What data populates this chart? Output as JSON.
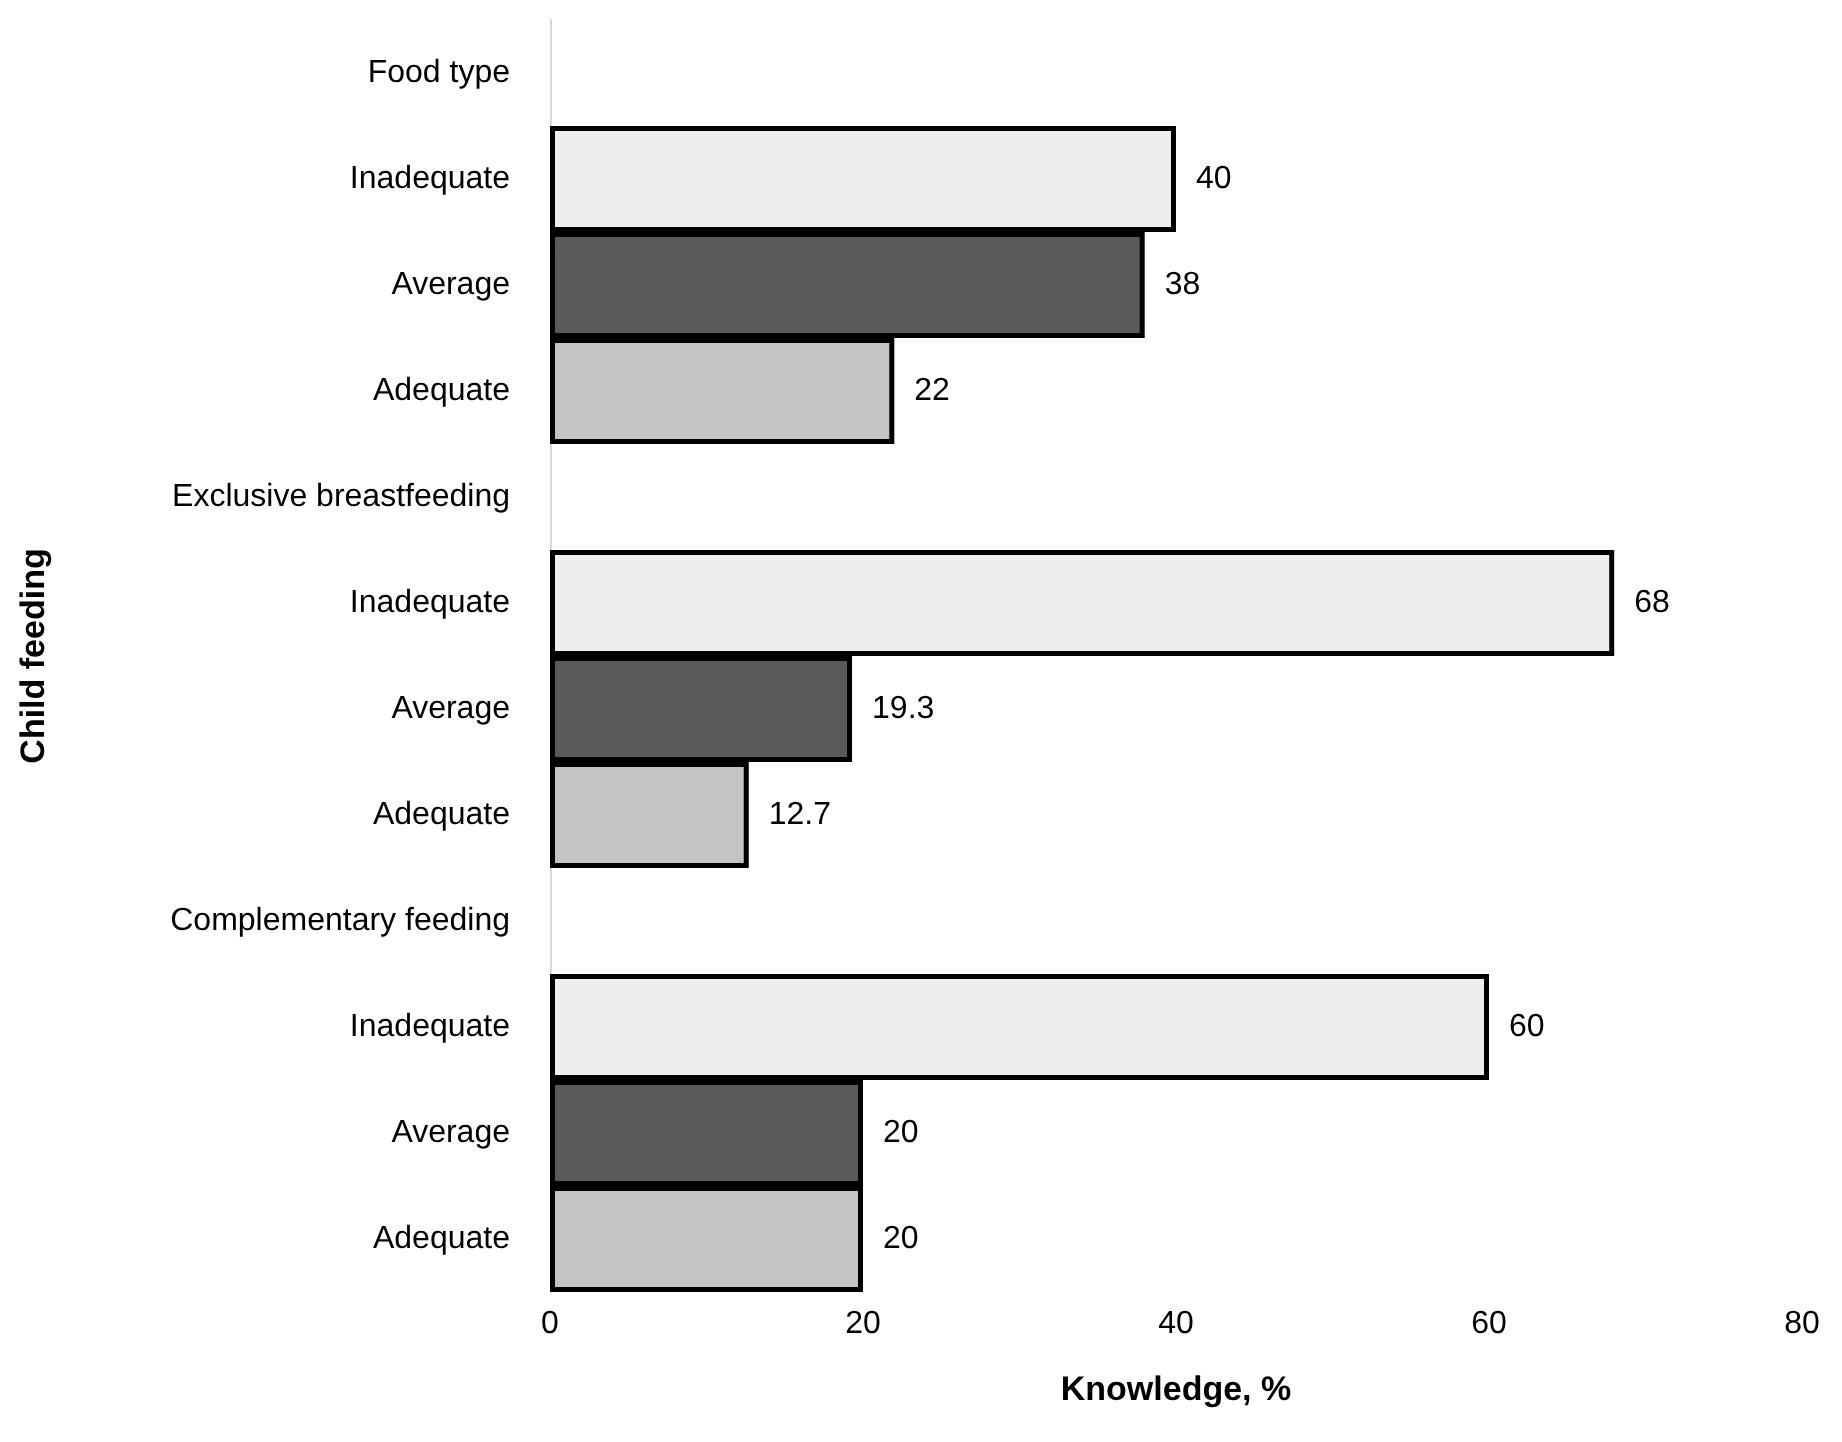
{
  "chart_data": {
    "type": "bar",
    "orientation": "horizontal",
    "xlabel": "Knowledge, %",
    "ylabel": "Child feeding",
    "categories": [
      "Food type",
      "Inadequate",
      "Average",
      "Adequate",
      "Exclusive breastfeeding",
      "Inadequate",
      "Average",
      "Adequate",
      "Complementary feeding",
      "Inadequate",
      "Average",
      "Adequate"
    ],
    "values": [
      null,
      40,
      38,
      22,
      null,
      68,
      19.3,
      12.7,
      null,
      60,
      20,
      20
    ],
    "colors": [
      "#ffffff",
      "#eeeeee",
      "#595959",
      "#c4c4c4",
      "#ffffff",
      "#eeeeee",
      "#595959",
      "#c4c4c4",
      "#ffffff",
      "#eeeeee",
      "#595959",
      "#c4c4c4"
    ],
    "xlim": [
      0,
      80
    ],
    "xticks": [
      0,
      20,
      40,
      60,
      80
    ],
    "data_labels": true,
    "grid": false
  }
}
